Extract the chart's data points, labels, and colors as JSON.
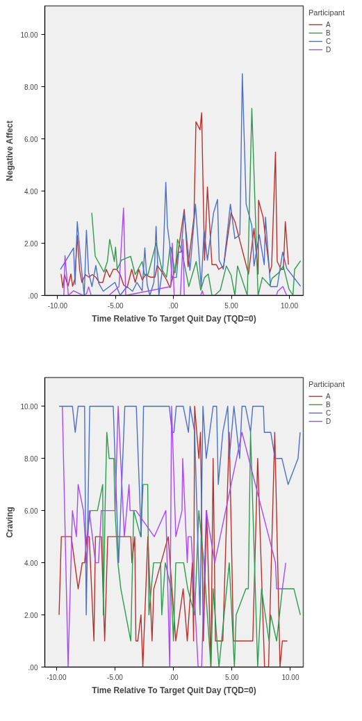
{
  "chart_data": [
    {
      "type": "line",
      "xlabel": "Time Relative To Target Quit Day (TQD=0)",
      "ylabel": "Negative Affect",
      "legend_title": "Participant",
      "legend": "right",
      "grid": false,
      "marker": "none",
      "line_style": "solid",
      "xlim": [
        -11.1,
        11.2
      ],
      "ylim": [
        0,
        11.1
      ],
      "xticks": [
        {
          "value": -10,
          "label": "-10.00"
        },
        {
          "value": -5,
          "label": "-5.00"
        },
        {
          "value": 0,
          "label": ".00"
        },
        {
          "value": 5,
          "label": "5.00"
        },
        {
          "value": 10,
          "label": "10.00"
        }
      ],
      "yticks": [
        {
          "value": 0,
          "label": ".00"
        },
        {
          "value": 2,
          "label": "2.00"
        },
        {
          "value": 4,
          "label": "4.00"
        },
        {
          "value": 6,
          "label": "6.00"
        },
        {
          "value": 8,
          "label": "8.00"
        },
        {
          "value": 10,
          "label": "10.00"
        }
      ],
      "series": [
        {
          "name": "A",
          "color": "#b5302c",
          "x": [
            -9.7,
            -9.55,
            -9.4,
            -9.1,
            -8.85,
            -8.7,
            -8.5,
            -8.3,
            -8.1,
            -7.9,
            -7.6,
            -7.3,
            -7.0,
            -6.7,
            -6.4,
            -6.1,
            -5.8,
            -5.5,
            -5.2,
            -4.9,
            -4.6,
            -4.3,
            -4.0,
            -3.6,
            -3.3,
            -3.0,
            -2.7,
            -2.4,
            -2.0,
            -1.6,
            -1.4,
            -1.0,
            -0.6,
            -0.3,
            0.25,
            0.93,
            1.26,
            1.77,
            1.94,
            2.29,
            2.43,
            2.68,
            2.93,
            3.32,
            3.7,
            3.9,
            4.33,
            4.97,
            5.3,
            6.47,
            6.95,
            7.3,
            7.34,
            7.73,
            8.31,
            8.47,
            8.8,
            8.95,
            9.28,
            9.48,
            9.65,
            9.92
          ],
          "values": [
            0.82,
            0.3,
            0.8,
            0.35,
            0.82,
            0.35,
            0.65,
            2.3,
            1.0,
            0.5,
            0.8,
            0.7,
            0.8,
            0.7,
            0.5,
            0.5,
            1.0,
            0.7,
            1.0,
            1.0,
            0.8,
            0.4,
            0.3,
            1.0,
            0.5,
            1.0,
            0.6,
            0.8,
            0.7,
            0.7,
            1.15,
            0.9,
            0.6,
            0.3,
            1.2,
            3.3,
            1.1,
            3.0,
            6.66,
            6.35,
            7.0,
            1.35,
            4.16,
            1.18,
            1.18,
            1.0,
            1.13,
            3.17,
            2.83,
            0.82,
            2.57,
            0.82,
            3.65,
            3.0,
            0.87,
            1.13,
            5.5,
            1.3,
            1.0,
            1.0,
            2.83,
            1.18
          ]
        },
        {
          "name": "B",
          "color": "#2e9a4e",
          "x": [
            -7.05,
            -6.75,
            -6.0,
            -5.7,
            -5.5,
            -5.1,
            -5.0,
            -4.85,
            -4.5,
            -3.7,
            -3.3,
            -2.7,
            -2.5,
            -2.2,
            -1.5,
            -1.0,
            -0.6,
            -0.3,
            -0.23,
            0.15,
            0.35,
            0.74,
            1.32,
            1.96,
            2.35,
            2.68,
            3.0,
            3.32,
            3.55,
            4.04,
            4.56,
            4.97,
            5.3,
            5.53,
            6.37,
            6.76,
            7.3,
            7.67,
            8.31,
            8.5,
            9.09,
            9.48,
            9.96,
            10.31,
            10.45,
            10.97
          ],
          "values": [
            3.17,
            1.5,
            0.9,
            1.3,
            2.15,
            1.3,
            1.85,
            1.0,
            1.35,
            1.5,
            0.8,
            1.3,
            0.8,
            0.8,
            2.0,
            1.0,
            0.7,
            1.85,
            1.84,
            0.87,
            2.15,
            1.66,
            0.34,
            1.3,
            0.2,
            0.69,
            0.82,
            0,
            0,
            0.2,
            1.13,
            0.78,
            0,
            1.13,
            0,
            7.17,
            0,
            0.69,
            0.38,
            0.65,
            0.87,
            1.13,
            0.25,
            0,
            1.0,
            1.33
          ]
        },
        {
          "name": "C",
          "color": "#4a6fc4",
          "x": [
            -9.75,
            -8.62,
            -8.49,
            -8.3,
            -8.0,
            -7.7,
            -7.51,
            -7.32,
            -7.03,
            -6.7,
            -6.45,
            -6.06,
            -5.05,
            -4.6,
            -4.02,
            -3.53,
            -3.15,
            -2.7,
            -2.47,
            -2.27,
            -2.04,
            -1.69,
            -1.5,
            -1.26,
            -0.91,
            -0.66,
            -0.52,
            -0.33,
            -0.14,
            0.25,
            0.45,
            0.64,
            0.93,
            1.42,
            1.9,
            2.39,
            2.64,
            2.93,
            3.46,
            3.8,
            3.94,
            4.3,
            4.91,
            5.3,
            5.73,
            5.94,
            6.27,
            6.76,
            6.95,
            7.4,
            7.83,
            7.94,
            8.37,
            8.95,
            9.42,
            9.77,
            10.97
          ],
          "values": [
            1.0,
            1.82,
            0.42,
            2.83,
            1.3,
            0,
            2.5,
            0.87,
            0.34,
            1.15,
            0.47,
            0.16,
            0.5,
            0,
            0.34,
            0.16,
            0.5,
            0.18,
            1.82,
            0.42,
            0,
            0.5,
            2.65,
            0,
            1.13,
            4.34,
            2.64,
            2.0,
            0.69,
            0.69,
            1.66,
            1.66,
            3.17,
            0.96,
            3.5,
            0.34,
            2.5,
            1.35,
            3.17,
            3.68,
            1.35,
            1.0,
            3.5,
            2.18,
            2.33,
            8.5,
            3.5,
            2.68,
            1.13,
            2.33,
            1.18,
            3.0,
            0.34,
            0.34,
            1.66,
            1.04,
            0.35
          ]
        },
        {
          "name": "D",
          "color": "#a64af0",
          "x": [
            -9.46,
            -9.36,
            -9.07,
            -8.62,
            -7.8,
            -7.5,
            -7.32,
            -7.1,
            -5.57,
            -4.7,
            -4.31,
            -4.12,
            -0.23,
            -0.1,
            0.06,
            0.6,
            0.83,
            0.93,
            2.35,
            2.49,
            2.6,
            8.89,
            8.99,
            9.44,
            9.77
          ],
          "values": [
            0,
            1.53,
            0,
            0.18,
            0,
            0.07,
            0.33,
            0,
            0,
            0.34,
            3.35,
            0,
            0.34,
            2.0,
            0,
            0,
            2.15,
            0,
            0,
            0.18,
            0,
            0,
            0.16,
            0.34,
            0
          ]
        }
      ]
    },
    {
      "type": "line",
      "xlabel": "Time Relative To Target Quit Day (TQD=0)",
      "ylabel": "Craving",
      "legend_title": "Participant",
      "legend": "right",
      "grid": false,
      "marker": "none",
      "line_style": "solid",
      "xlim": [
        -11.0,
        11.1
      ],
      "ylim": [
        0,
        11.1
      ],
      "xticks": [
        {
          "value": -10,
          "label": "-10.00"
        },
        {
          "value": -5,
          "label": "-5.00"
        },
        {
          "value": 0,
          "label": ".00"
        },
        {
          "value": 5,
          "label": "5.00"
        },
        {
          "value": 10,
          "label": "10.00"
        }
      ],
      "yticks": [
        {
          "value": 0,
          "label": ".00"
        },
        {
          "value": 2,
          "label": "2.00"
        },
        {
          "value": 4,
          "label": "4.00"
        },
        {
          "value": 6,
          "label": "6.00"
        },
        {
          "value": 8,
          "label": "8.00"
        },
        {
          "value": 10,
          "label": "10.00"
        }
      ],
      "series": [
        {
          "name": "A",
          "color": "#b5302c",
          "x": [
            -9.78,
            -9.59,
            -8.74,
            -8.15,
            -7.8,
            -7.6,
            -7.4,
            -7.2,
            -6.8,
            -6.67,
            -6.17,
            -5.88,
            -5.62,
            -3.65,
            -3.55,
            -3.31,
            -3.21,
            -3.05,
            -2.78,
            -2.62,
            -2.19,
            -1.83,
            -1.68,
            -0.45,
            0.2,
            0.83,
            1.18,
            1.62,
            1.72,
            1.81,
            2.17,
            2.31,
            2.56,
            2.84,
            3.2,
            3.39,
            3.59,
            4.22,
            4.77,
            5.13,
            6.78,
            7.2,
            7.79,
            8.13,
            8.66,
            9.11,
            9.31,
            9.74
          ],
          "values": [
            2,
            5,
            5,
            3,
            4,
            4,
            5,
            5,
            1,
            5,
            5,
            1,
            5,
            5,
            4,
            5,
            1,
            1,
            2,
            0,
            5,
            1,
            3,
            5,
            1,
            3,
            1,
            4,
            1,
            10,
            8,
            9,
            1,
            6,
            0,
            8,
            1,
            1,
            9,
            1,
            1,
            8,
            0,
            0,
            9,
            0,
            1,
            1
          ]
        },
        {
          "name": "B",
          "color": "#2e9a4e",
          "x": [
            -7.4,
            -7.1,
            -6.5,
            -6.05,
            -6.0,
            -5.85,
            -5.7,
            -5.5,
            -5.1,
            -5.0,
            -4.75,
            -4.5,
            -3.65,
            -3.4,
            -2.8,
            -2.6,
            -2.2,
            -2.1,
            -1.7,
            -1.1,
            -1.0,
            -0.7,
            -0.2,
            0.0,
            0.2,
            0.87,
            1.22,
            1.81,
            2.17,
            2.6,
            3.2,
            3.39,
            3.89,
            4.77,
            5.21,
            5.36,
            6.19,
            6.4,
            6.59,
            7.2,
            7.53,
            8.17,
            8.32,
            8.82,
            9.31,
            10.3,
            10.85
          ],
          "values": [
            5,
            6,
            6,
            7,
            2,
            6,
            9,
            8,
            8,
            6,
            4,
            3,
            1,
            6,
            5,
            7,
            7,
            2,
            4,
            4,
            2,
            4,
            3,
            1,
            4,
            4,
            3,
            2,
            6,
            4,
            0,
            3,
            0,
            4,
            0,
            2,
            3,
            3,
            9,
            0,
            3,
            1,
            2,
            1,
            3,
            3,
            2
          ]
        },
        {
          "name": "C",
          "color": "#4a6fc4",
          "x": [
            -9.78,
            -8.64,
            -8.4,
            -8.15,
            -7.6,
            -7.46,
            -7.16,
            -5.15,
            -4.69,
            -4.16,
            -3.18,
            -2.76,
            -2.56,
            -0.36,
            -0.12,
            0.04,
            0.24,
            0.83,
            1.28,
            1.42,
            1.81,
            2.27,
            2.52,
            2.8,
            3.39,
            3.69,
            3.83,
            4.22,
            4.64,
            4.77,
            5.17,
            5.66,
            5.86,
            6.15,
            6.59,
            6.78,
            7.69,
            7.77,
            8.32,
            8.68,
            9.27,
            9.8,
            10.65,
            10.83
          ],
          "values": [
            10,
            10,
            9,
            10,
            10,
            2,
            10,
            10,
            4,
            10,
            10,
            5,
            10,
            10,
            9,
            9,
            10,
            10,
            9,
            10,
            9,
            2,
            10,
            8,
            10,
            10,
            7,
            9,
            10,
            8,
            10,
            8,
            10,
            10,
            9,
            10,
            10,
            9,
            9,
            8,
            8,
            7,
            8,
            9
          ]
        },
        {
          "name": "D",
          "color": "#a64af0",
          "x": [
            -9.5,
            -9.01,
            -8.64,
            -8.3,
            -8.15,
            -7.7,
            -7.42,
            -7.2,
            -6.67,
            -6.41,
            -6.17,
            -4.99,
            -4.73,
            -4.2,
            -3.8,
            -3.71,
            -3.21,
            -1.64,
            -0.65,
            -0.32,
            -0.16,
            0.2,
            0.73,
            0.79,
            1.18,
            1.26,
            1.52,
            2.11,
            2.41,
            2.8,
            3.53,
            5.86,
            8.72,
            8.82,
            9.31,
            9.6
          ],
          "values": [
            10,
            0,
            6,
            5,
            7,
            6,
            4,
            6,
            4,
            4,
            6,
            6,
            10,
            5,
            7,
            6,
            6,
            5,
            6,
            0,
            10,
            5,
            6,
            8,
            4,
            5,
            5,
            0,
            0,
            6,
            4,
            9,
            4,
            3,
            3,
            4
          ]
        }
      ]
    }
  ]
}
